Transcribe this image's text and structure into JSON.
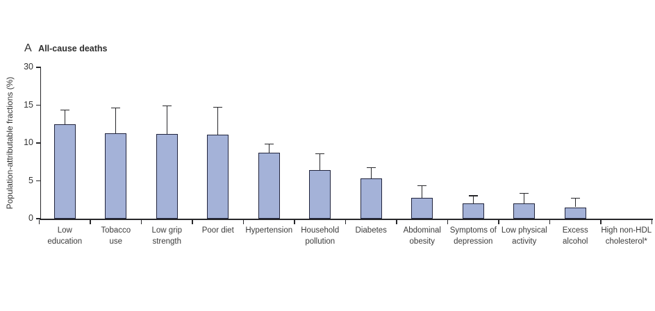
{
  "title": {
    "panel_letter": "A",
    "text": "All-cause deaths"
  },
  "colors": {
    "bar_fill": "#a4b2d8",
    "bar_border": "#20243d",
    "axis": "#27272a",
    "text": "#3a3a3a"
  },
  "chart_data": {
    "type": "bar",
    "title": "A  All-cause deaths",
    "xlabel": "",
    "ylabel": "Population-attributable fractions (%)",
    "y_tick_labels": [
      "0",
      "5",
      "10",
      "15",
      "30"
    ],
    "axis_note": "y-axis ticks equally spaced; top tick labeled 30 (compressed above 15)",
    "grid": "off",
    "legend": "none",
    "error_bars": "upper 95% CI only",
    "categories": [
      "Low education",
      "Tobacco use",
      "Low grip strength",
      "Poor diet",
      "Hypertension",
      "Household pollution",
      "Diabetes",
      "Abdominal obesity",
      "Symptoms of depression",
      "Low physical activity",
      "Excess alcohol",
      "High non-HDL cholesterol*"
    ],
    "label_lines": [
      [
        "Low",
        "education"
      ],
      [
        "Tobacco",
        "use"
      ],
      [
        "Low grip",
        "strength"
      ],
      [
        "Poor diet"
      ],
      [
        "Hypertension"
      ],
      [
        "Household",
        "pollution"
      ],
      [
        "Diabetes"
      ],
      [
        "Abdominal",
        "obesity"
      ],
      [
        "Symptoms of",
        "depression"
      ],
      [
        "Low physical",
        "activity"
      ],
      [
        "Excess",
        "alcohol"
      ],
      [
        "High non-HDL",
        "cholesterol*"
      ]
    ],
    "values": [
      12.4,
      11.2,
      11.1,
      11.0,
      8.6,
      6.4,
      5.3,
      2.7,
      2.0,
      2.0,
      1.5,
      0
    ],
    "upper_ci": [
      14.2,
      14.5,
      14.8,
      14.6,
      9.8,
      8.5,
      6.7,
      4.3,
      3.0,
      3.3,
      2.7,
      null
    ]
  }
}
